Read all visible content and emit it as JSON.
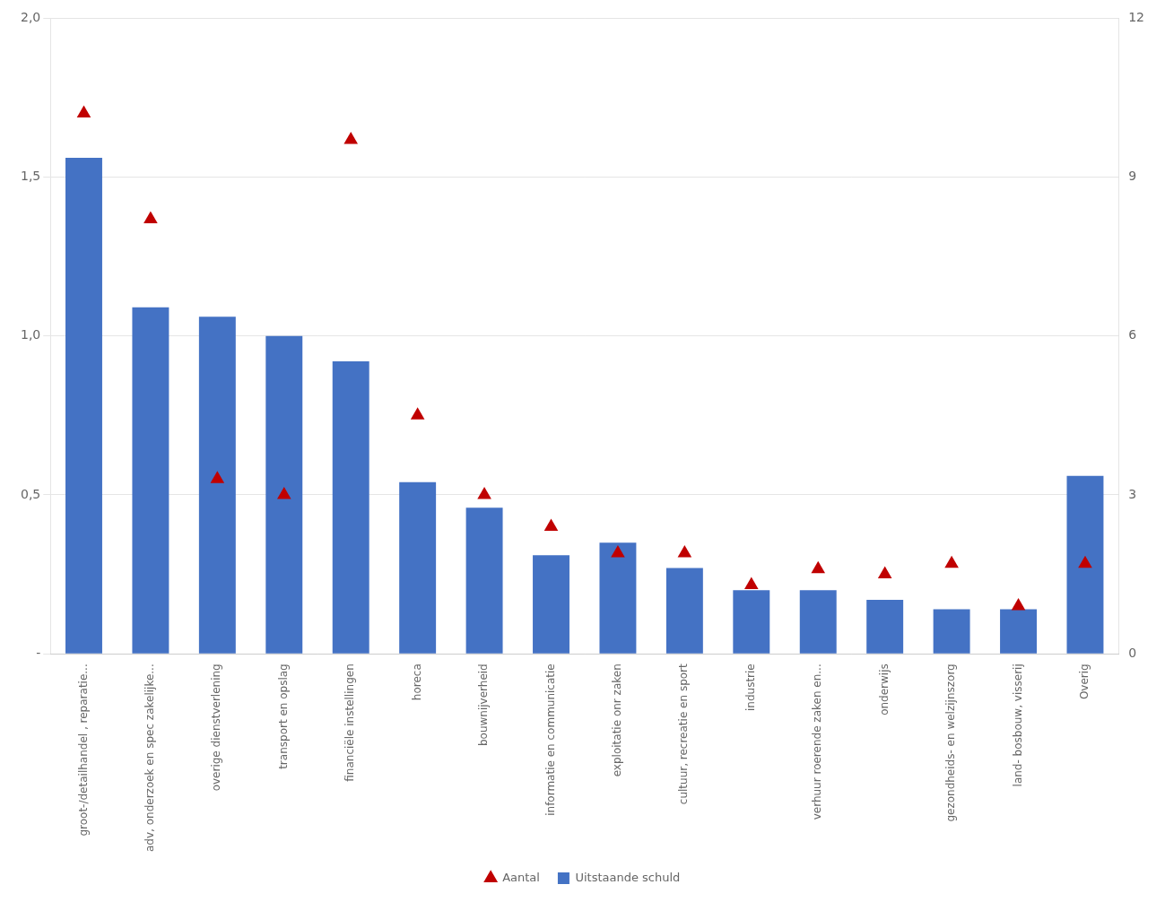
{
  "chart_data": {
    "type": "bar",
    "categories": [
      "groot-/detailhandel , reparatie...",
      "adv, onderzoek en spec zakelijke...",
      "overige dienstverlening",
      "transport en opslag",
      "financiële instellingen",
      "horeca",
      "bouwnijverheid",
      "informatie en communicatie",
      "exploitatie onr zaken",
      "cultuur, recreatie en sport",
      "industrie",
      "verhuur roerende zaken en...",
      "onderwijs",
      "gezondheids- en welzijnszorg",
      "land- bosbouw, visserij",
      "Overig"
    ],
    "series": [
      {
        "name": "Uitstaande schuld",
        "type": "bar",
        "color": "#4472C4",
        "values": [
          1.56,
          1.09,
          1.06,
          1.0,
          0.92,
          0.54,
          0.46,
          0.31,
          0.35,
          0.27,
          0.2,
          0.2,
          0.17,
          0.14,
          0.14,
          0.56
        ]
      },
      {
        "name": "Aantal",
        "type": "scatter",
        "marker": "triangle",
        "color": "#C00000",
        "axis": "y2",
        "values": [
          10.2,
          8.2,
          3.3,
          3.0,
          9.7,
          4.5,
          3.0,
          2.4,
          1.9,
          1.9,
          1.3,
          1.6,
          1.5,
          1.7,
          0.9,
          1.7
        ]
      }
    ],
    "ylim": [
      0,
      2.0
    ],
    "yticks": [
      {
        "value": 0,
        "label": "-"
      },
      {
        "value": 0.5,
        "label": "0,5"
      },
      {
        "value": 1.0,
        "label": "1,0"
      },
      {
        "value": 1.5,
        "label": "1,5"
      },
      {
        "value": 2.0,
        "label": "2,0"
      }
    ],
    "y2lim": [
      0,
      12
    ],
    "y2ticks": [
      0,
      3,
      6,
      9,
      12
    ],
    "grid": true,
    "legend": "bottom"
  }
}
